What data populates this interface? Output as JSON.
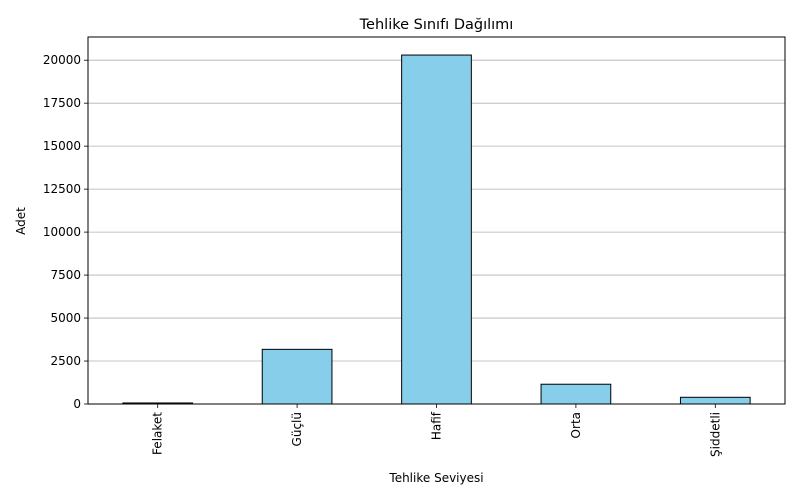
{
  "chart_data": {
    "type": "bar",
    "title": "Tehlike Sınıfı Dağılımı",
    "xlabel": "Tehlike Seviyesi",
    "ylabel": "Adet",
    "categories": [
      "Felaket",
      "Güçlü",
      "Hafif",
      "Orta",
      "Şiddetli"
    ],
    "values": [
      60,
      3180,
      20300,
      1150,
      390
    ],
    "ylim": [
      0,
      21350
    ],
    "yticks": [
      0,
      2500,
      5000,
      7500,
      10000,
      12500,
      15000,
      17500,
      20000
    ],
    "grid": "y",
    "bar_color": "#87CEEB",
    "edge_color": "#000000",
    "grid_color": "#b0b0b0"
  }
}
